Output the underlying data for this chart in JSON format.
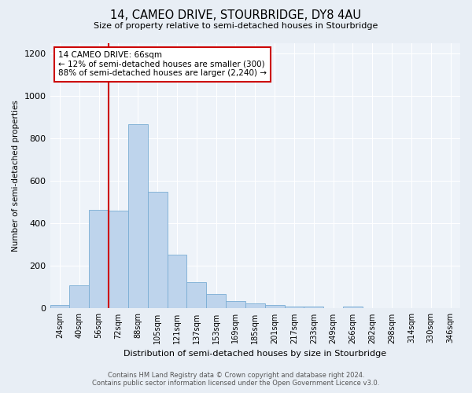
{
  "title": "14, CAMEO DRIVE, STOURBRIDGE, DY8 4AU",
  "subtitle": "Size of property relative to semi-detached houses in Stourbridge",
  "xlabel": "Distribution of semi-detached houses by size in Stourbridge",
  "ylabel": "Number of semi-detached properties",
  "bar_labels": [
    "24sqm",
    "40sqm",
    "56sqm",
    "72sqm",
    "88sqm",
    "105sqm",
    "121sqm",
    "137sqm",
    "153sqm",
    "169sqm",
    "185sqm",
    "201sqm",
    "217sqm",
    "233sqm",
    "249sqm",
    "266sqm",
    "282sqm",
    "298sqm",
    "314sqm",
    "330sqm",
    "346sqm"
  ],
  "bar_values": [
    15,
    110,
    465,
    460,
    870,
    550,
    255,
    125,
    70,
    35,
    25,
    15,
    10,
    10,
    0,
    10,
    0,
    0,
    0,
    0,
    0
  ],
  "bar_color": "#bed4ec",
  "bar_edge_color": "#7aadd4",
  "vline_bin_index": 2,
  "annotation_text": "14 CAMEO DRIVE: 66sqm\n← 12% of semi-detached houses are smaller (300)\n88% of semi-detached houses are larger (2,240) →",
  "annotation_box_color": "#ffffff",
  "annotation_box_edge_color": "#cc0000",
  "vline_color": "#cc0000",
  "ylim": [
    0,
    1250
  ],
  "yticks": [
    0,
    200,
    400,
    600,
    800,
    1000,
    1200
  ],
  "footer_line1": "Contains HM Land Registry data © Crown copyright and database right 2024.",
  "footer_line2": "Contains public sector information licensed under the Open Government Licence v3.0.",
  "bg_color": "#e8eef5",
  "plot_bg_color": "#eef3f9"
}
